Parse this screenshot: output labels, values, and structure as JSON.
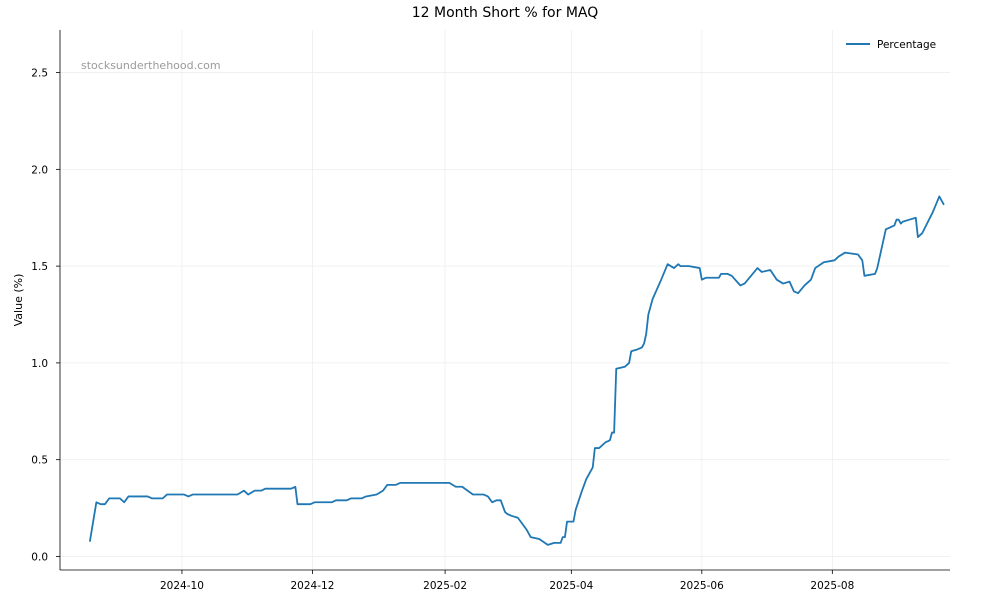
{
  "chart_data": {
    "type": "line",
    "title": "12 Month Short % for MAQ",
    "xlabel": "",
    "ylabel": "Value (%)",
    "watermark": "stocksunderthehood.com",
    "legend_position": "top-right",
    "grid": true,
    "xlim": [
      "2024-08-05",
      "2025-09-25"
    ],
    "ylim": [
      -0.07,
      2.72
    ],
    "x_ticks": [
      "2024-10",
      "2024-12",
      "2025-02",
      "2025-04",
      "2025-06",
      "2025-08"
    ],
    "y_ticks": [
      "0.0",
      "0.5",
      "1.0",
      "1.5",
      "2.0",
      "2.5"
    ],
    "series": [
      {
        "name": "Percentage",
        "color": "#1f77b4",
        "points": [
          [
            "2024-08-19",
            0.08
          ],
          [
            "2024-08-22",
            0.28
          ],
          [
            "2024-08-24",
            0.27
          ],
          [
            "2024-08-26",
            0.27
          ],
          [
            "2024-08-28",
            0.3
          ],
          [
            "2024-09-02",
            0.3
          ],
          [
            "2024-09-04",
            0.28
          ],
          [
            "2024-09-06",
            0.31
          ],
          [
            "2024-09-15",
            0.31
          ],
          [
            "2024-09-17",
            0.3
          ],
          [
            "2024-09-22",
            0.3
          ],
          [
            "2024-09-24",
            0.32
          ],
          [
            "2024-10-02",
            0.32
          ],
          [
            "2024-10-04",
            0.31
          ],
          [
            "2024-10-06",
            0.32
          ],
          [
            "2024-10-15",
            0.32
          ],
          [
            "2024-10-27",
            0.32
          ],
          [
            "2024-10-30",
            0.34
          ],
          [
            "2024-11-01",
            0.32
          ],
          [
            "2024-11-04",
            0.34
          ],
          [
            "2024-11-07",
            0.34
          ],
          [
            "2024-11-09",
            0.35
          ],
          [
            "2024-11-21",
            0.35
          ],
          [
            "2024-11-23",
            0.36
          ],
          [
            "2024-11-24",
            0.27
          ],
          [
            "2024-11-30",
            0.27
          ],
          [
            "2024-12-02",
            0.28
          ],
          [
            "2024-12-10",
            0.28
          ],
          [
            "2024-12-12",
            0.29
          ],
          [
            "2024-12-17",
            0.29
          ],
          [
            "2024-12-19",
            0.3
          ],
          [
            "2024-12-24",
            0.3
          ],
          [
            "2024-12-26",
            0.31
          ],
          [
            "2024-12-31",
            0.32
          ],
          [
            "2025-01-03",
            0.34
          ],
          [
            "2025-01-05",
            0.37
          ],
          [
            "2025-01-09",
            0.37
          ],
          [
            "2025-01-11",
            0.38
          ],
          [
            "2025-02-03",
            0.38
          ],
          [
            "2025-02-06",
            0.36
          ],
          [
            "2025-02-09",
            0.36
          ],
          [
            "2025-02-14",
            0.32
          ],
          [
            "2025-02-19",
            0.32
          ],
          [
            "2025-02-21",
            0.31
          ],
          [
            "2025-02-23",
            0.28
          ],
          [
            "2025-02-25",
            0.29
          ],
          [
            "2025-02-27",
            0.29
          ],
          [
            "2025-02-29",
            0.23
          ],
          [
            "2025-03-01",
            0.23
          ],
          [
            "2025-03-02",
            0.22
          ],
          [
            "2025-03-04",
            0.21
          ],
          [
            "2025-03-07",
            0.2
          ],
          [
            "2025-03-11",
            0.14
          ],
          [
            "2025-03-13",
            0.1
          ],
          [
            "2025-03-17",
            0.09
          ],
          [
            "2025-03-21",
            0.06
          ],
          [
            "2025-03-24",
            0.07
          ],
          [
            "2025-03-27",
            0.07
          ],
          [
            "2025-03-28",
            0.1
          ],
          [
            "2025-03-29",
            0.1
          ],
          [
            "2025-03-30",
            0.18
          ],
          [
            "2025-04-02",
            0.18
          ],
          [
            "2025-04-03",
            0.24
          ],
          [
            "2025-04-06",
            0.34
          ],
          [
            "2025-04-08",
            0.4
          ],
          [
            "2025-04-11",
            0.46
          ],
          [
            "2025-04-12",
            0.56
          ],
          [
            "2025-04-14",
            0.56
          ],
          [
            "2025-04-17",
            0.59
          ],
          [
            "2025-04-19",
            0.6
          ],
          [
            "2025-04-20",
            0.64
          ],
          [
            "2025-04-21",
            0.64
          ],
          [
            "2025-04-22",
            0.97
          ],
          [
            "2025-04-26",
            0.98
          ],
          [
            "2025-04-28",
            1.0
          ],
          [
            "2025-04-29",
            1.06
          ],
          [
            "2025-05-02",
            1.07
          ],
          [
            "2025-05-04",
            1.08
          ],
          [
            "2025-05-05",
            1.1
          ],
          [
            "2025-05-06",
            1.15
          ],
          [
            "2025-05-07",
            1.25
          ],
          [
            "2025-05-09",
            1.33
          ],
          [
            "2025-05-13",
            1.43
          ],
          [
            "2025-05-16",
            1.51
          ],
          [
            "2025-05-19",
            1.49
          ],
          [
            "2025-05-21",
            1.51
          ],
          [
            "2025-05-22",
            1.5
          ],
          [
            "2025-05-26",
            1.5
          ],
          [
            "2025-05-31",
            1.49
          ],
          [
            "2025-06-01",
            1.43
          ],
          [
            "2025-06-03",
            1.44
          ],
          [
            "2025-06-07",
            1.44
          ],
          [
            "2025-06-09",
            1.44
          ],
          [
            "2025-06-10",
            1.46
          ],
          [
            "2025-06-13",
            1.46
          ],
          [
            "2025-06-15",
            1.45
          ],
          [
            "2025-06-19",
            1.4
          ],
          [
            "2025-06-21",
            1.41
          ],
          [
            "2025-06-24",
            1.45
          ],
          [
            "2025-06-27",
            1.49
          ],
          [
            "2025-06-29",
            1.47
          ],
          [
            "2025-07-03",
            1.48
          ],
          [
            "2025-07-06",
            1.43
          ],
          [
            "2025-07-09",
            1.41
          ],
          [
            "2025-07-12",
            1.42
          ],
          [
            "2025-07-14",
            1.37
          ],
          [
            "2025-07-16",
            1.36
          ],
          [
            "2025-07-19",
            1.4
          ],
          [
            "2025-07-22",
            1.43
          ],
          [
            "2025-07-24",
            1.49
          ],
          [
            "2025-07-28",
            1.52
          ],
          [
            "2025-08-02",
            1.53
          ],
          [
            "2025-08-04",
            1.55
          ],
          [
            "2025-08-07",
            1.57
          ],
          [
            "2025-08-13",
            1.56
          ],
          [
            "2025-08-15",
            1.53
          ],
          [
            "2025-08-16",
            1.45
          ],
          [
            "2025-08-21",
            1.46
          ],
          [
            "2025-08-22",
            1.49
          ],
          [
            "2025-08-26",
            1.69
          ],
          [
            "2025-08-30",
            1.71
          ],
          [
            "2025-08-31",
            1.74
          ],
          [
            "2025-09-01",
            1.74
          ],
          [
            "2025-09-02",
            1.72
          ],
          [
            "2025-09-03",
            1.73
          ],
          [
            "2025-09-06",
            1.74
          ],
          [
            "2025-09-09",
            1.75
          ],
          [
            "2025-09-10",
            1.65
          ],
          [
            "2025-09-12",
            1.67
          ],
          [
            "2025-09-17",
            1.78
          ],
          [
            "2025-09-20",
            1.86
          ],
          [
            "2025-09-22",
            1.82
          ]
        ]
      }
    ]
  }
}
